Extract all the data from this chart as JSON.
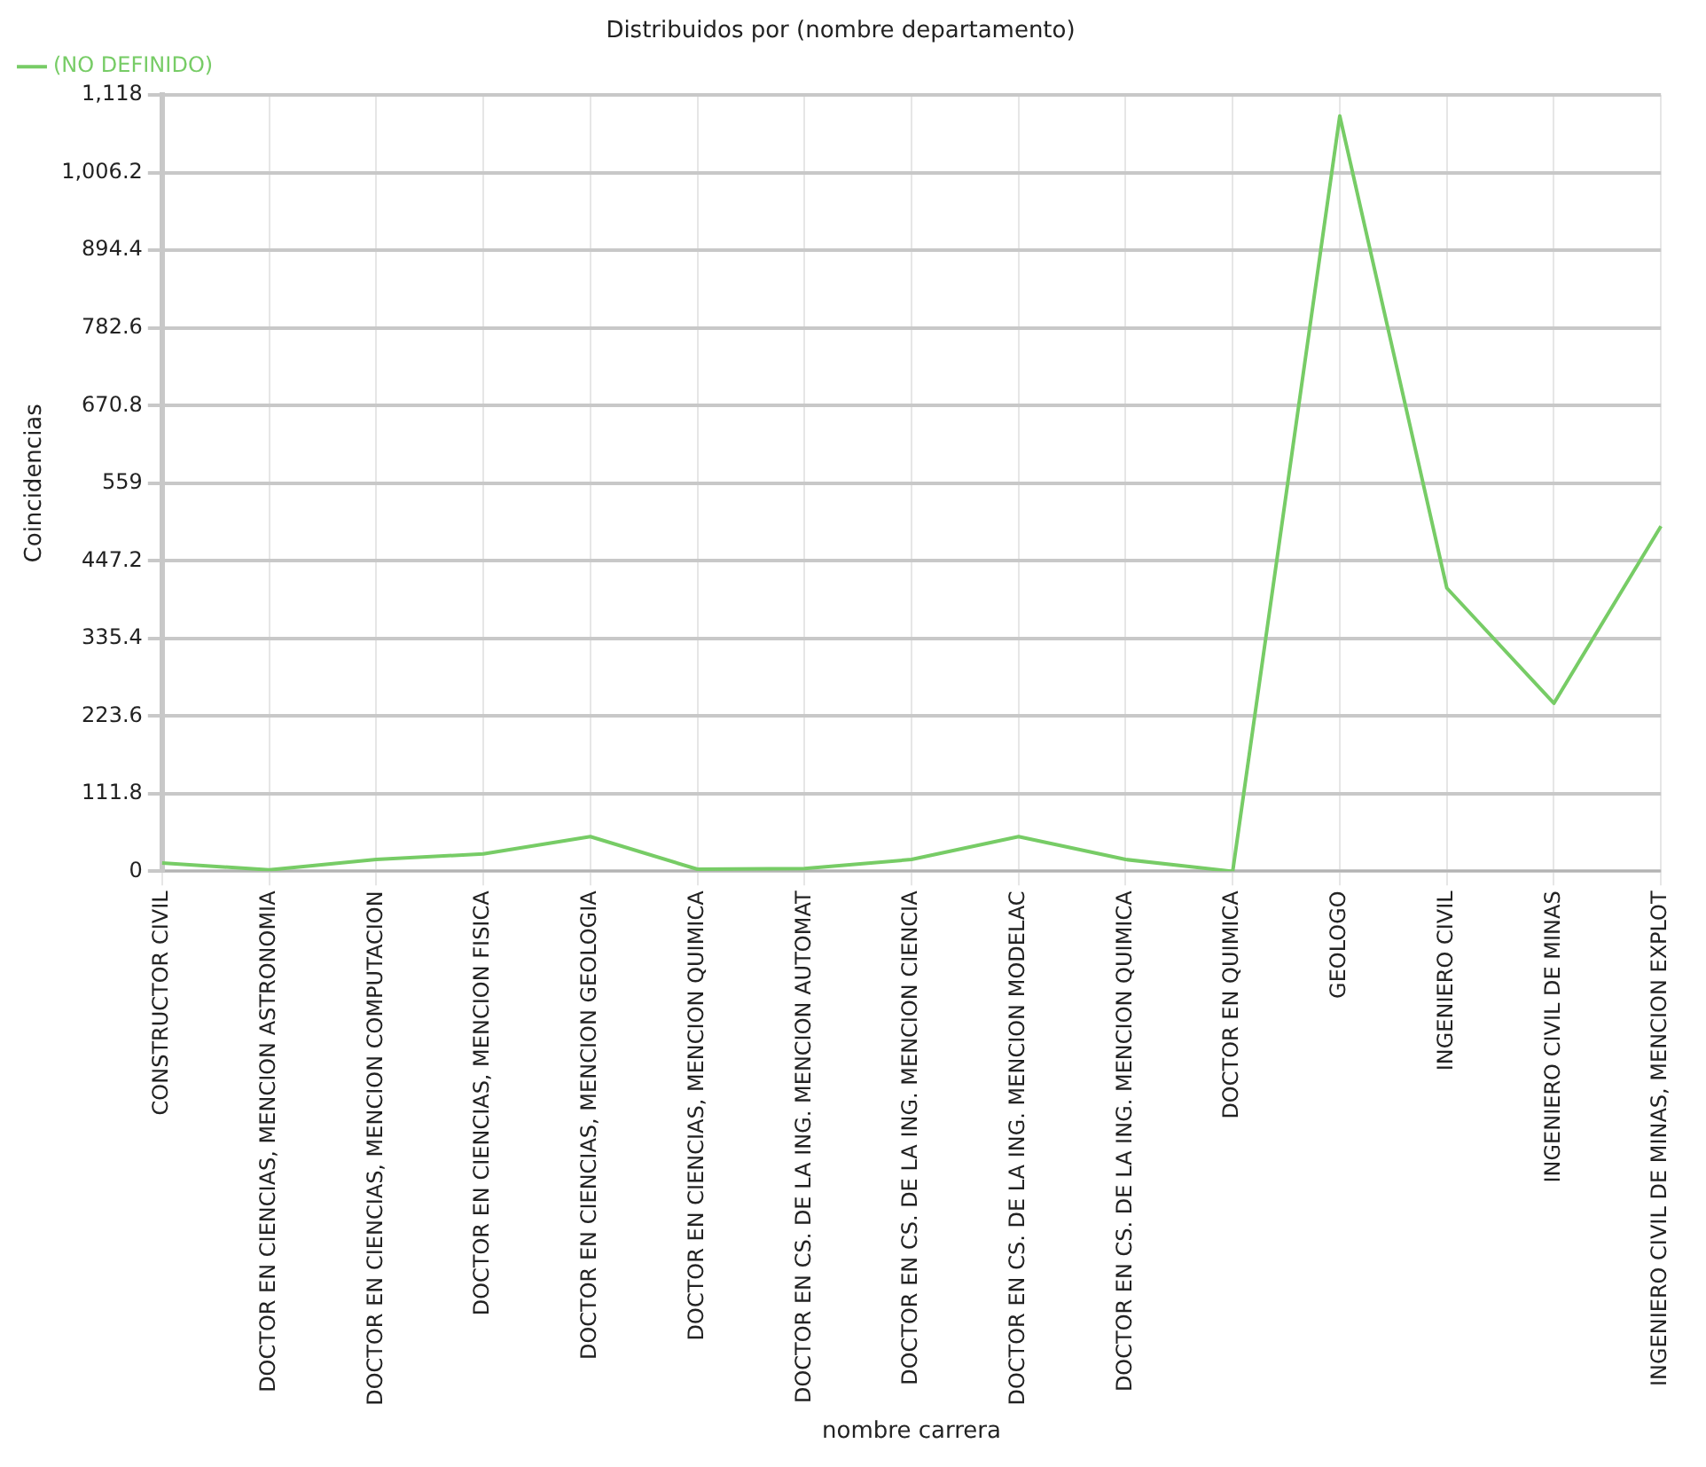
{
  "chart_data": {
    "type": "line",
    "title": "Distribuidos por (nombre departamento)",
    "xlabel": "nombre carrera",
    "ylabel": "Coincidencias",
    "categories": [
      "CONSTRUCTOR CIVIL",
      "DOCTOR EN CIENCIAS, MENCION ASTRONOMIA",
      "DOCTOR EN CIENCIAS, MENCION COMPUTACION",
      "DOCTOR EN CIENCIAS, MENCION FISICA",
      "DOCTOR EN CIENCIAS, MENCION GEOLOGIA",
      "DOCTOR EN CIENCIAS, MENCION QUIMICA",
      "DOCTOR EN CS. DE LA ING. MENCION AUTOMAT",
      "DOCTOR EN CS. DE LA ING. MENCION CIENCIA",
      "DOCTOR EN CS. DE LA ING. MENCION MODELAC",
      "DOCTOR EN CS. DE LA ING. MENCION QUIMICA",
      "DOCTOR EN QUIMICA",
      "GEOLOGO",
      "INGENIERO CIVIL",
      "INGENIERO CIVIL DE MINAS",
      "INGENIERO CIVIL DE MINAS, MENCION EXPLOT"
    ],
    "series": [
      {
        "name": "(NO DEFINIDO)",
        "color": "#77cc66",
        "values": [
          12,
          2,
          17,
          25,
          50,
          3,
          4,
          17,
          50,
          17,
          0,
          1088,
          408,
          242,
          497
        ]
      }
    ],
    "ylim": [
      0,
      1118
    ],
    "yticks": [
      0,
      111.8,
      223.6,
      335.4,
      447.2,
      559,
      670.8,
      782.6,
      894.4,
      {
        "value": 1006.2,
        "label": "1,006.2"
      },
      {
        "value": 1118,
        "label": "1,118"
      }
    ],
    "grid": true,
    "legend": "top left",
    "marker": "none",
    "line_style": "solid"
  }
}
